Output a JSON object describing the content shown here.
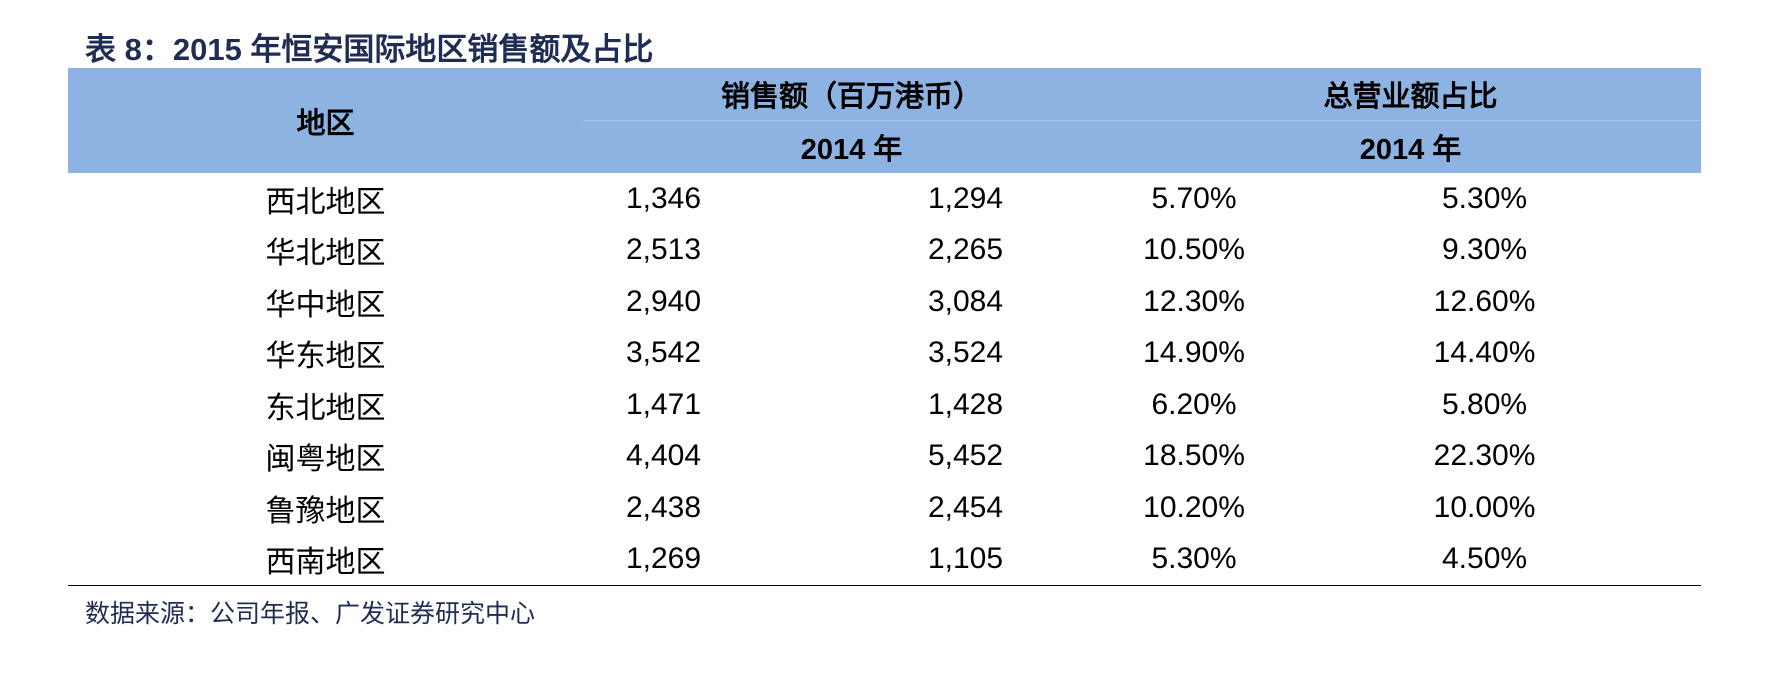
{
  "title": "表 8：2015 年恒安国际地区销售额及占比",
  "table": {
    "header": {
      "region": "地区",
      "sales": "销售额（百万港币）",
      "share": "总营业额占比",
      "sales_year": "2014 年",
      "share_year": "2014 年"
    },
    "rows": [
      [
        "西北地区",
        "1,346",
        "1,294",
        "5.70%",
        "5.30%"
      ],
      [
        "华北地区",
        "2,513",
        "2,265",
        "10.50%",
        "9.30%"
      ],
      [
        "华中地区",
        "2,940",
        "3,084",
        "12.30%",
        "12.60%"
      ],
      [
        "华东地区",
        "3,542",
        "3,524",
        "14.90%",
        "14.40%"
      ],
      [
        "东北地区",
        "1,471",
        "1,428",
        "6.20%",
        "5.80%"
      ],
      [
        "闽粤地区",
        "4,404",
        "5,452",
        "18.50%",
        "22.30%"
      ],
      [
        "鲁豫地区",
        "2,438",
        "2,454",
        "10.20%",
        "10.00%"
      ],
      [
        "西南地区",
        "1,269",
        "1,105",
        "5.30%",
        "4.50%"
      ]
    ]
  },
  "source": "数据来源：公司年报、广发证券研究中心"
}
